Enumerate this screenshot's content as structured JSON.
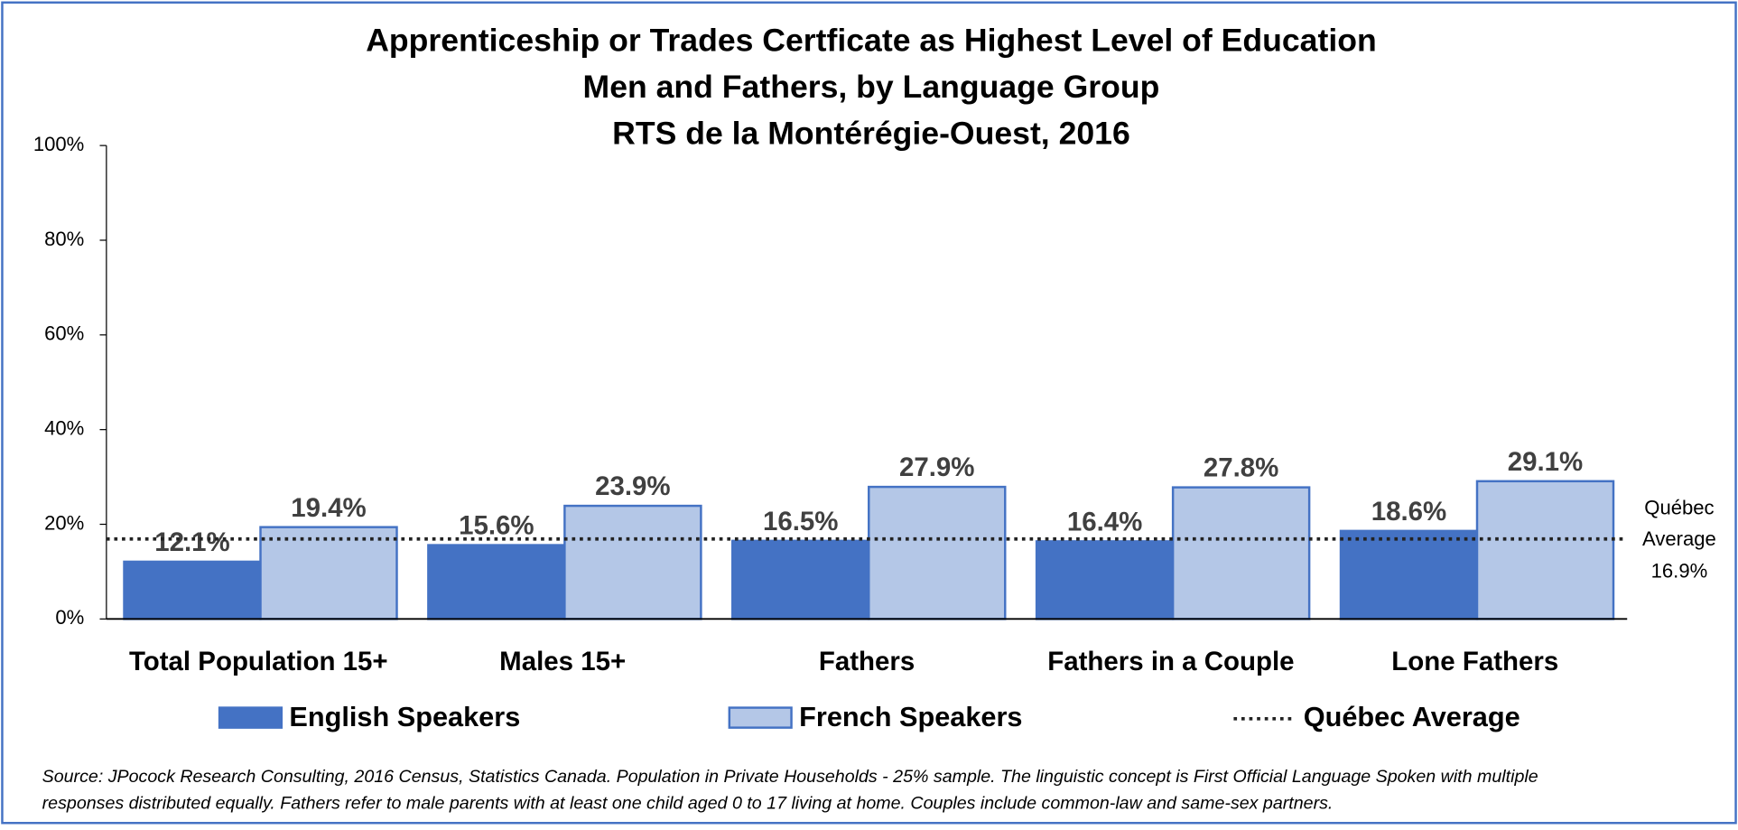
{
  "chart_data": {
    "type": "bar",
    "title": [
      "Apprenticeship or Trades Certficate as Highest Level of Education",
      "Men and Fathers, by Language Group",
      "RTS de la Montérégie-Ouest, 2016"
    ],
    "categories": [
      "Total Population 15+",
      "Males 15+",
      "Fathers",
      "Fathers in a Couple",
      "Lone Fathers"
    ],
    "series": [
      {
        "name": "English Speakers",
        "color": "#4472c4",
        "values": [
          12.1,
          15.6,
          16.5,
          16.4,
          18.6
        ],
        "value_labels": [
          "12.1%",
          "15.6%",
          "16.5%",
          "16.4%",
          "18.6%"
        ]
      },
      {
        "name": "French Speakers",
        "color": "#b4c7e7",
        "values": [
          19.4,
          23.9,
          27.9,
          27.8,
          29.1
        ],
        "value_labels": [
          "19.4%",
          "23.9%",
          "27.9%",
          "27.8%",
          "29.1%"
        ]
      }
    ],
    "average": {
      "name": "Québec Average",
      "value": 16.9,
      "value_label": "16.9%",
      "annotation": [
        "Québec",
        "Average"
      ]
    },
    "ylim": [
      0,
      100
    ],
    "yticks": [
      {
        "value": 0,
        "label": "0%"
      },
      {
        "value": 20,
        "label": "20%"
      },
      {
        "value": 40,
        "label": "40%"
      },
      {
        "value": 60,
        "label": "60%"
      },
      {
        "value": 80,
        "label": "80%"
      },
      {
        "value": 100,
        "label": "100%"
      }
    ],
    "grid": false,
    "legend": "bottom",
    "source": [
      "Source: JPocock Research Consulting, 2016 Census, Statistics Canada. Population in Private Households - 25% sample. The linguistic concept is First Official Language Spoken with multiple",
      "responses distributed equally. Fathers refer to male parents with at least one child aged 0 to 17 living at home. Couples include common-law and same-sex partners."
    ]
  }
}
